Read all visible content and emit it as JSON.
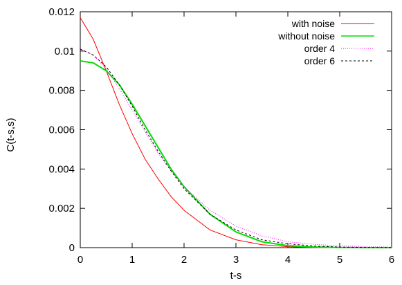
{
  "chart_data": {
    "type": "line",
    "title": "",
    "xlabel": "t-s",
    "ylabel": "C(t-s,s)",
    "xlim": [
      0,
      6
    ],
    "ylim": [
      0,
      0.012
    ],
    "grid": false,
    "legend_position": "top-right",
    "x_ticks": [
      "0",
      "1",
      "2",
      "3",
      "4",
      "5",
      "6"
    ],
    "y_ticks": [
      "0",
      "0.002",
      "0.004",
      "0.006",
      "0.008",
      "0.01",
      "0.012"
    ],
    "series": [
      {
        "name": "with noise",
        "color": "#ff0000",
        "style": "solid",
        "points": [
          [
            0,
            0.0117
          ],
          [
            0.25,
            0.0106
          ],
          [
            0.5,
            0.009
          ],
          [
            0.75,
            0.0073
          ],
          [
            1,
            0.0058
          ],
          [
            1.25,
            0.0045
          ],
          [
            1.5,
            0.0035
          ],
          [
            1.75,
            0.0026
          ],
          [
            2,
            0.0019
          ],
          [
            2.5,
            0.0009
          ],
          [
            3,
            0.0004
          ],
          [
            3.5,
            0.00015
          ],
          [
            4,
            5e-05
          ],
          [
            4.5,
            1e-05
          ],
          [
            5,
            0
          ],
          [
            5.5,
            0
          ],
          [
            6,
            0
          ]
        ]
      },
      {
        "name": "without noise",
        "color": "#00dd00",
        "style": "solid",
        "points": [
          [
            0,
            0.0095
          ],
          [
            0.25,
            0.0094
          ],
          [
            0.5,
            0.009
          ],
          [
            0.75,
            0.0083
          ],
          [
            1,
            0.0073
          ],
          [
            1.25,
            0.0062
          ],
          [
            1.5,
            0.0051
          ],
          [
            1.75,
            0.004
          ],
          [
            2,
            0.0031
          ],
          [
            2.5,
            0.0017
          ],
          [
            3,
            0.0008
          ],
          [
            3.5,
            0.0003
          ],
          [
            4,
            0.0001
          ],
          [
            4.5,
            3e-05
          ],
          [
            5,
            1e-05
          ],
          [
            5.5,
            0
          ],
          [
            6,
            0
          ]
        ]
      },
      {
        "name": "order 4",
        "color": "#ff00ff",
        "style": "dotted",
        "points": [
          [
            0,
            0.0101
          ],
          [
            0.25,
            0.0098
          ],
          [
            0.5,
            0.0091
          ],
          [
            0.75,
            0.0081
          ],
          [
            1,
            0.007
          ],
          [
            1.25,
            0.0059
          ],
          [
            1.5,
            0.0048
          ],
          [
            1.75,
            0.0039
          ],
          [
            2,
            0.0031
          ],
          [
            2.5,
            0.0019
          ],
          [
            3,
            0.0011
          ],
          [
            3.5,
            0.0006
          ],
          [
            4,
            0.0003
          ],
          [
            4.5,
            0.00017
          ],
          [
            5,
            9e-05
          ],
          [
            5.5,
            5e-05
          ],
          [
            6,
            3e-05
          ]
        ]
      },
      {
        "name": "order 6",
        "color": "#000000",
        "style": "dashed",
        "points": [
          [
            0,
            0.0101
          ],
          [
            0.25,
            0.0098
          ],
          [
            0.5,
            0.0092
          ],
          [
            0.75,
            0.0083
          ],
          [
            1,
            0.0072
          ],
          [
            1.25,
            0.006
          ],
          [
            1.5,
            0.0049
          ],
          [
            1.75,
            0.0039
          ],
          [
            2,
            0.003
          ],
          [
            2.5,
            0.0017
          ],
          [
            3,
            0.0009
          ],
          [
            3.5,
            0.0004
          ],
          [
            4,
            0.0002
          ],
          [
            4.5,
            8e-05
          ],
          [
            5,
            3e-05
          ],
          [
            5.5,
            1e-05
          ],
          [
            6,
            0
          ]
        ]
      }
    ]
  }
}
